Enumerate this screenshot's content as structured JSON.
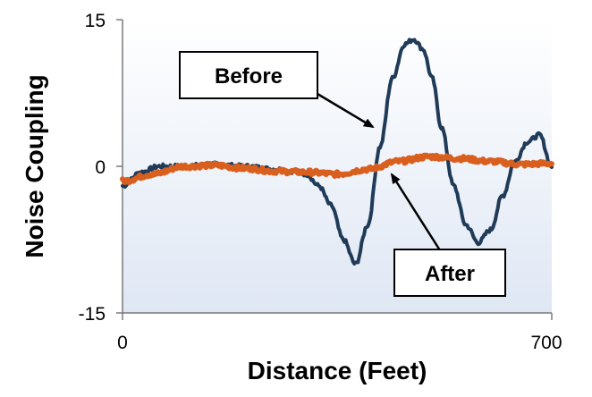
{
  "chart_data": {
    "type": "line",
    "title": "",
    "xlabel": "Distance (Feet)",
    "ylabel": "Noise Coupling",
    "xlim": [
      0,
      700
    ],
    "ylim": [
      -15,
      15
    ],
    "xticks": [
      "0",
      "700"
    ],
    "yticks": [
      "15",
      "0",
      "-15"
    ],
    "grid": false,
    "series": [
      {
        "label": "Before",
        "color": "#1f3b57",
        "x": [
          0,
          30,
          60,
          100,
          150,
          200,
          250,
          280,
          300,
          320,
          340,
          360,
          380,
          400,
          420,
          440,
          460,
          475,
          490,
          505,
          520,
          540,
          560,
          580,
          600,
          620,
          640,
          660,
          680,
          700
        ],
        "y": [
          -2,
          -0.6,
          0,
          0,
          0.2,
          0,
          -0.3,
          -0.5,
          -0.8,
          -2,
          -4,
          -7.5,
          -10,
          -6,
          2,
          9,
          12.5,
          13,
          12,
          9,
          4,
          -2,
          -6,
          -7.8,
          -6.5,
          -3,
          0.5,
          2.5,
          3.2,
          0
        ]
      },
      {
        "label": "After",
        "color": "#d95f1e",
        "x": [
          0,
          50,
          100,
          150,
          200,
          250,
          300,
          350,
          400,
          450,
          500,
          550,
          600,
          650,
          700
        ],
        "y": [
          -1.5,
          -0.8,
          0,
          0.1,
          -0.2,
          -0.5,
          -0.6,
          -0.8,
          -0.3,
          0.5,
          1,
          0.8,
          0.5,
          0.2,
          0.3
        ]
      }
    ],
    "annotations": [
      {
        "text": "Before",
        "target_series": "Before"
      },
      {
        "text": "After",
        "target_series": "After"
      }
    ],
    "background": {
      "top": "#ffffff",
      "bottom": "#dfe7f4"
    }
  }
}
